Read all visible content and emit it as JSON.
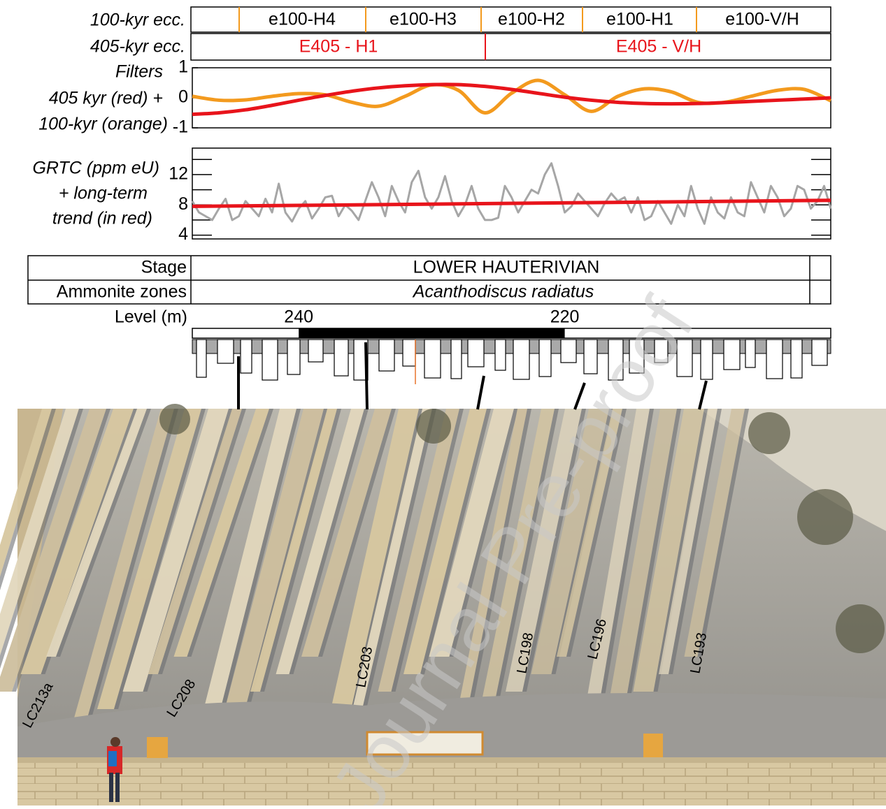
{
  "header": {
    "ecc100": {
      "label": "100-kyr ecc.",
      "cells": [
        "e100-H4",
        "e100-H3",
        "e100-H2",
        "e100-H1",
        "e100-V/H"
      ]
    },
    "ecc405": {
      "label": "405-kyr ecc.",
      "cells": [
        "E405 - H1",
        "E405 - V/H"
      ]
    }
  },
  "chart_data": [
    {
      "type": "line",
      "ylabel": [
        "Filters",
        "405 kyr (red) +",
        "100-kyr (orange)"
      ],
      "x": [
        248,
        246,
        244,
        242,
        240,
        238,
        236,
        234,
        232,
        230,
        228,
        226,
        224,
        222,
        220,
        218,
        216,
        214,
        212,
        210,
        208,
        206,
        204,
        202,
        200
      ],
      "xlim": [
        248,
        200
      ],
      "ylim": [
        -1,
        1
      ],
      "yticks": [
        -1,
        0,
        1
      ],
      "series": [
        {
          "color": "#f39a1e",
          "values": [
            0.05,
            -0.08,
            -0.07,
            0.05,
            0.14,
            0.1,
            -0.15,
            -0.28,
            0.05,
            0.43,
            0.25,
            -0.5,
            0.15,
            0.58,
            0.1,
            -0.45,
            0.05,
            0.3,
            0.2,
            -0.15,
            -0.15,
            0.05,
            0.25,
            0.28,
            -0.1
          ]
        },
        {
          "color": "#e8141b",
          "values": [
            -0.55,
            -0.5,
            -0.4,
            -0.25,
            -0.08,
            0.08,
            0.22,
            0.33,
            0.4,
            0.44,
            0.44,
            0.38,
            0.28,
            0.15,
            0.02,
            -0.08,
            -0.15,
            -0.19,
            -0.2,
            -0.19,
            -0.16,
            -0.12,
            -0.08,
            -0.04,
            0.0
          ]
        }
      ]
    },
    {
      "type": "line",
      "ylabel": [
        "GRTC (ppm eU)",
        "+ long-term",
        "trend (in red)"
      ],
      "x": [
        248,
        247.5,
        247,
        246.5,
        246,
        245.5,
        245,
        244.5,
        244,
        243.5,
        243,
        242.5,
        242,
        241.5,
        241,
        240.5,
        240,
        239.5,
        239,
        238.5,
        238,
        237.5,
        237,
        236.5,
        236,
        235.5,
        235,
        234.5,
        234,
        233.5,
        233,
        232.5,
        232,
        231.5,
        231,
        230.5,
        230,
        229.5,
        229,
        228.5,
        228,
        227.5,
        227,
        226.5,
        226,
        225.5,
        225,
        224.5,
        224,
        223.5,
        223,
        222.5,
        222,
        221.5,
        221,
        220.5,
        220,
        219.5,
        219,
        218.5,
        218,
        217.5,
        217,
        216.5,
        216,
        215.5,
        215,
        214.5,
        214,
        213.5,
        213,
        212.5,
        212,
        211.5,
        211,
        210.5,
        210,
        209.5,
        209,
        208.5,
        208,
        207.5,
        207,
        206.5,
        206,
        205.5,
        205,
        204.5,
        204,
        203.5,
        203,
        202.5,
        202,
        201.5,
        201,
        200.5,
        200
      ],
      "xlim": [
        248,
        200
      ],
      "ylim": [
        3.5,
        15.5
      ],
      "yticks": [
        4,
        8,
        12
      ],
      "minor_yticks": [
        6,
        10,
        14
      ],
      "series": [
        {
          "color": "#a6a6a6",
          "values": [
            8.5,
            7,
            6.5,
            6,
            7.5,
            8.8,
            6,
            6.5,
            8.5,
            7.5,
            6.5,
            8.8,
            7,
            10.8,
            7,
            5.8,
            7.5,
            8.5,
            6.2,
            7.5,
            9,
            9.2,
            6.5,
            8,
            7.2,
            6,
            8.5,
            11,
            9,
            6.5,
            10.5,
            8.5,
            7,
            11,
            12.5,
            9,
            7.5,
            9,
            11.8,
            8.5,
            6.5,
            8,
            10.5,
            7.5,
            6,
            6,
            6.3,
            10.5,
            9,
            7,
            8.5,
            10,
            9.5,
            12,
            13.5,
            10.5,
            7,
            7.8,
            9.5,
            8.5,
            7.5,
            6.5,
            8.2,
            9.5,
            8.5,
            9,
            7,
            9,
            6,
            6.5,
            8.5,
            7,
            5.5,
            8,
            6.5,
            10.5,
            7.5,
            5.5,
            9,
            7,
            6.2,
            9,
            7,
            6.5,
            11,
            9,
            7,
            10.5,
            9,
            6.5,
            7.5,
            10.5,
            10,
            7.5,
            8.5,
            10.5,
            7.5
          ]
        },
        {
          "color": "#e8141b",
          "x": [
            248,
            200
          ],
          "values": [
            7.8,
            8.6
          ]
        }
      ]
    }
  ],
  "table": {
    "rows": [
      [
        "Stage",
        "LOWER HAUTERIVIAN"
      ],
      [
        "Ammonite zones",
        "Acanthodiscus radiatus"
      ]
    ]
  },
  "level_axis": {
    "label": "Level (m)",
    "xlim": [
      248,
      200
    ],
    "xticks": [
      240,
      220
    ]
  },
  "photo": {
    "labels": [
      "LC213a",
      "LC208",
      "LC203",
      "LC198",
      "LC196",
      "LC193"
    ]
  },
  "watermark": "Journal Pre-proof"
}
